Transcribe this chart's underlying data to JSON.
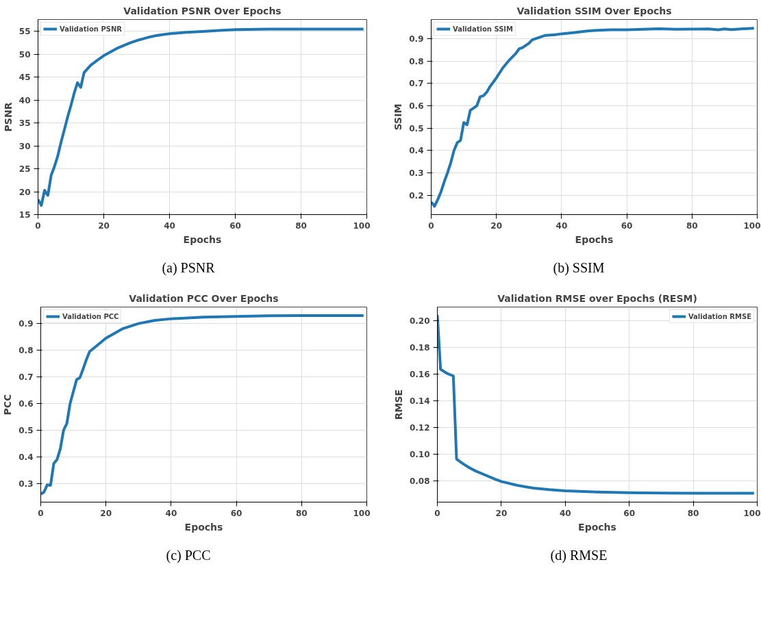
{
  "chart_data": [
    {
      "type": "line",
      "title": "Validation PSNR Over Epochs",
      "xlabel": "Epochs",
      "ylabel": "PSNR",
      "annotations": [
        "(a) PSNR"
      ],
      "xlim": [
        0,
        100
      ],
      "xticks": [
        0,
        20,
        40,
        60,
        80,
        100
      ],
      "ylim": [
        15,
        57.6
      ],
      "yticks": [
        15,
        20,
        25,
        30,
        35,
        40,
        45,
        50,
        55
      ],
      "grid": true,
      "legend": "top left",
      "series": [
        {
          "name": "Validation PSNR",
          "color": "#1f77b4",
          "x": [
            0,
            1,
            2,
            3,
            4,
            5,
            6,
            7,
            8,
            9,
            10,
            11,
            12,
            13,
            14,
            16,
            18,
            20,
            22,
            24,
            26,
            28,
            30,
            32,
            34,
            36,
            38,
            40,
            45,
            50,
            55,
            60,
            70,
            80,
            90,
            99
          ],
          "values": [
            18.3,
            17,
            20.3,
            19.2,
            23.6,
            25.5,
            27.8,
            30.8,
            33.5,
            36.3,
            38.8,
            41.5,
            43.8,
            42.8,
            46,
            47.6,
            48.7,
            49.7,
            50.5,
            51.3,
            51.9,
            52.5,
            53,
            53.4,
            53.8,
            54.1,
            54.3,
            54.5,
            54.8,
            55,
            55.2,
            55.4,
            55.5,
            55.5,
            55.5,
            55.5
          ]
        }
      ]
    },
    {
      "type": "line",
      "title": "Validation SSIM Over Epochs",
      "xlabel": "Epochs",
      "ylabel": "SSIM",
      "annotations": [
        "(b) SSIM"
      ],
      "xlim": [
        0,
        100
      ],
      "xticks": [
        0,
        20,
        40,
        60,
        80,
        100
      ],
      "ylim": [
        0.113,
        0.986
      ],
      "yticks": [
        0.2,
        0.3,
        0.4,
        0.5,
        0.6,
        0.7,
        0.8,
        0.9
      ],
      "grid": true,
      "legend": "top left",
      "series": [
        {
          "name": "Validation SSIM",
          "color": "#1f77b4",
          "x": [
            0,
            1,
            2,
            3,
            4,
            5,
            6,
            7,
            8,
            9,
            10,
            11,
            12,
            13,
            14,
            15,
            16,
            17,
            18,
            20,
            22,
            24,
            26,
            27,
            28,
            30,
            31,
            33,
            35,
            38,
            40,
            44,
            48,
            50,
            55,
            60,
            65,
            70,
            75,
            80,
            85,
            88,
            90,
            92,
            95,
            99
          ],
          "values": [
            0.17,
            0.15,
            0.18,
            0.215,
            0.26,
            0.3,
            0.345,
            0.4,
            0.435,
            0.445,
            0.525,
            0.515,
            0.58,
            0.59,
            0.6,
            0.64,
            0.645,
            0.66,
            0.685,
            0.725,
            0.77,
            0.805,
            0.835,
            0.855,
            0.86,
            0.88,
            0.895,
            0.905,
            0.915,
            0.918,
            0.922,
            0.928,
            0.935,
            0.937,
            0.94,
            0.94,
            0.942,
            0.945,
            0.942,
            0.943,
            0.944,
            0.94,
            0.944,
            0.941,
            0.944,
            0.947
          ]
        }
      ]
    },
    {
      "type": "line",
      "title": "Validation PCC Over Epochs",
      "xlabel": "Epochs",
      "ylabel": "PCC",
      "annotations": [
        "(c) PCC"
      ],
      "xlim": [
        0,
        100
      ],
      "xticks": [
        0,
        20,
        40,
        60,
        80,
        100
      ],
      "ylim": [
        0.23,
        0.962
      ],
      "yticks": [
        0.3,
        0.4,
        0.5,
        0.6,
        0.7,
        0.8,
        0.9
      ],
      "grid": true,
      "legend": "top left",
      "series": [
        {
          "name": "Validation PCC",
          "color": "#1f77b4",
          "x": [
            0,
            1,
            2,
            3,
            4,
            5,
            6,
            7,
            8,
            9,
            10,
            11,
            12,
            13,
            14,
            15,
            17,
            20,
            25,
            30,
            35,
            40,
            50,
            60,
            70,
            80,
            90,
            99
          ],
          "values": [
            0.26,
            0.268,
            0.295,
            0.293,
            0.375,
            0.39,
            0.43,
            0.5,
            0.525,
            0.6,
            0.645,
            0.69,
            0.697,
            0.73,
            0.765,
            0.795,
            0.815,
            0.845,
            0.88,
            0.9,
            0.912,
            0.918,
            0.924,
            0.927,
            0.929,
            0.93,
            0.93,
            0.93
          ]
        }
      ]
    },
    {
      "type": "line",
      "title": "Validation RMSE over Epochs (RESM)",
      "xlabel": "Epochs",
      "ylabel": "RMSE",
      "annotations": [
        "(d) RMSE"
      ],
      "xlim": [
        0,
        100
      ],
      "xticks": [
        0,
        20,
        40,
        60,
        80,
        100
      ],
      "ylim": [
        0.0643,
        0.21
      ],
      "yticks": [
        {
          "value": 0.08,
          "label": "0.08"
        },
        {
          "value": 0.1,
          "label": "0.10"
        },
        {
          "value": 0.12,
          "label": "0.12"
        },
        {
          "value": 0.14,
          "label": "0.14"
        },
        {
          "value": 0.16,
          "label": "0.16"
        },
        {
          "value": 0.18,
          "label": "0.18"
        },
        {
          "value": 0.2,
          "label": "0.20"
        }
      ],
      "grid": true,
      "legend": "top right",
      "series": [
        {
          "name": "Validation RMSE",
          "color": "#1f77b4",
          "x": [
            0,
            1,
            3,
            5,
            6,
            8,
            10,
            12,
            15,
            18,
            20,
            25,
            30,
            35,
            40,
            50,
            60,
            70,
            80,
            99
          ],
          "values": [
            0.204,
            0.1635,
            0.1605,
            0.1585,
            0.0965,
            0.093,
            0.09,
            0.0875,
            0.0845,
            0.0815,
            0.0797,
            0.0768,
            0.0748,
            0.0736,
            0.0727,
            0.0718,
            0.0713,
            0.0711,
            0.071,
            0.071
          ]
        }
      ]
    }
  ]
}
